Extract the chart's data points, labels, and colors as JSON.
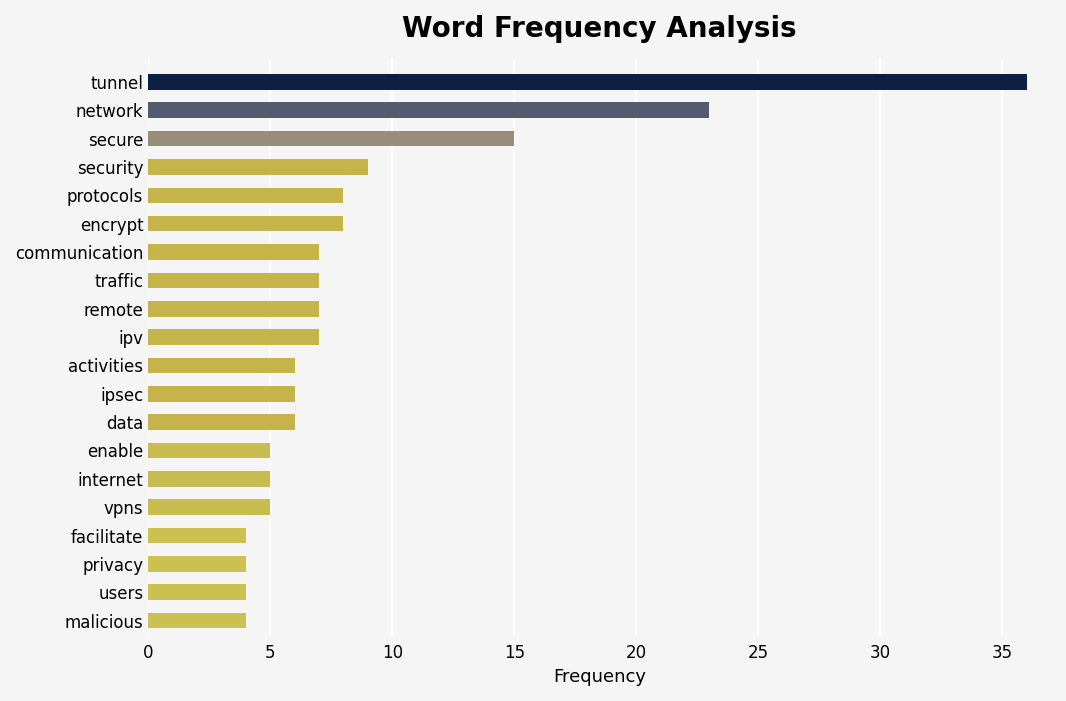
{
  "categories": [
    "tunnel",
    "network",
    "secure",
    "security",
    "protocols",
    "encrypt",
    "communication",
    "traffic",
    "remote",
    "ipv",
    "activities",
    "ipsec",
    "data",
    "enable",
    "internet",
    "vpns",
    "facilitate",
    "privacy",
    "users",
    "malicious"
  ],
  "values": [
    36,
    23,
    15,
    9,
    8,
    8,
    7,
    7,
    7,
    7,
    6,
    6,
    6,
    5,
    5,
    5,
    4,
    4,
    4,
    4
  ],
  "bar_colors": [
    "#0d1f45",
    "#535c6e",
    "#968e78",
    "#c4b44a",
    "#c4b44a",
    "#c4b44a",
    "#c4b44a",
    "#c4b44a",
    "#c4b44a",
    "#c4b44a",
    "#c4b44a",
    "#c4b44a",
    "#c4b44a",
    "#c8bc50",
    "#c8bc50",
    "#c8bc50",
    "#ccc050",
    "#ccc050",
    "#ccc050",
    "#ccc050"
  ],
  "title": "Word Frequency Analysis",
  "xlabel": "Frequency",
  "xlim": [
    0,
    37
  ],
  "background_color": "#f5f5f5",
  "plot_background": "#f5f5f5",
  "title_fontsize": 20,
  "label_fontsize": 13,
  "tick_fontsize": 12,
  "bar_height": 0.55
}
